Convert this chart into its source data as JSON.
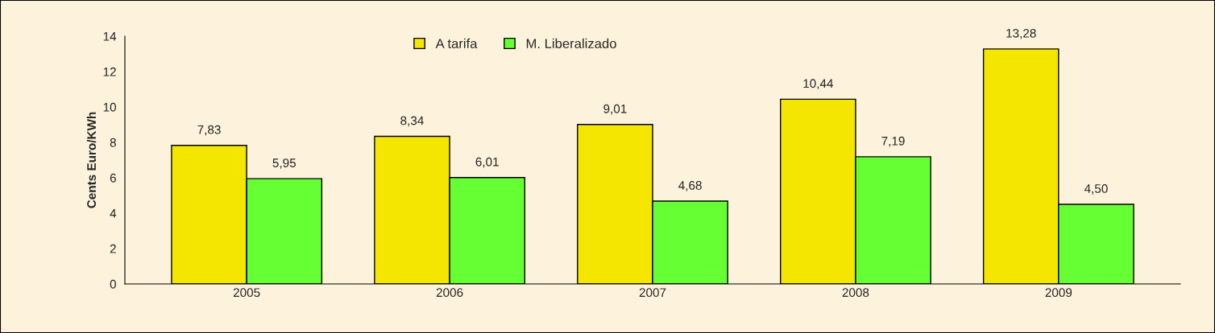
{
  "chart_data": {
    "type": "bar",
    "ylabel": "Cents Euro/KWh",
    "categories": [
      "2005",
      "2006",
      "2007",
      "2008",
      "2009"
    ],
    "series": [
      {
        "name": "A tarifa",
        "color": "#f5e600",
        "values": [
          7.83,
          8.34,
          9.01,
          10.44,
          13.28
        ],
        "value_labels": [
          "7,83",
          "8,34",
          "9,01",
          "10,44",
          "13,28"
        ]
      },
      {
        "name": "M. Liberalizado",
        "color": "#66ff33",
        "values": [
          5.95,
          6.01,
          4.68,
          7.19,
          4.5
        ],
        "value_labels": [
          "5,95",
          "6,01",
          "4,68",
          "7,19",
          "4,50"
        ]
      }
    ],
    "ylim": [
      0,
      14
    ],
    "yticks": [
      0,
      2,
      4,
      6,
      8,
      10,
      12,
      14
    ],
    "grid": false,
    "legend": "top"
  }
}
